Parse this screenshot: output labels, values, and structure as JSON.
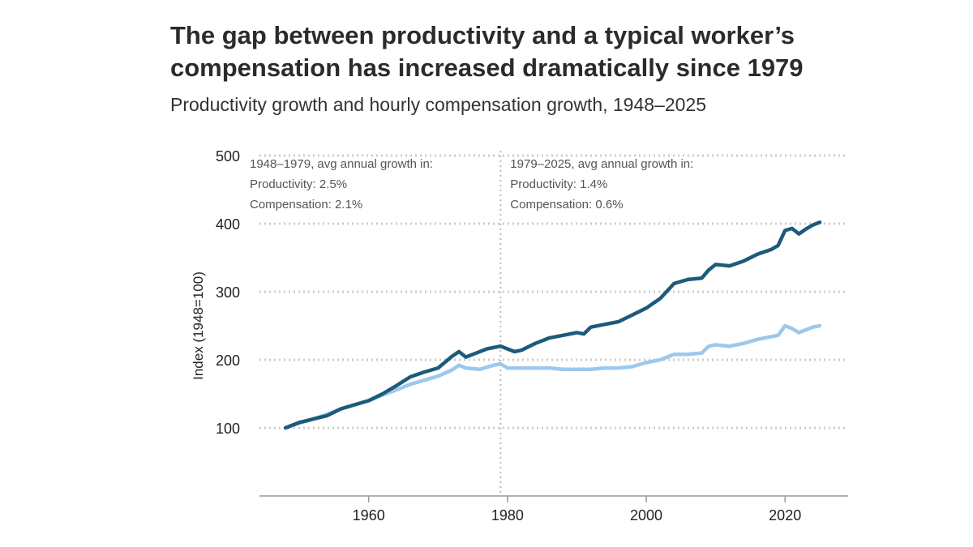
{
  "title": "The gap between productivity and a typical worker’s compensation has increased dramatically since 1979",
  "subtitle": "Productivity growth and hourly compensation growth, 1948–2025",
  "chart_data": {
    "type": "line",
    "title": "The gap between productivity and a typical worker’s compensation has increased dramatically since 1979",
    "subtitle": "Productivity growth and hourly compensation growth, 1948–2025",
    "xlabel": "",
    "ylabel": "Index (1948=100)",
    "xlim": [
      1948,
      2025
    ],
    "ylim": [
      0,
      500
    ],
    "x_ticks": [
      1960,
      1980,
      2000,
      2020
    ],
    "y_ticks": [
      100,
      200,
      300,
      400,
      500
    ],
    "grid": "horizontal dotted",
    "vline": 1979,
    "annotations": [
      {
        "lines": [
          "1948–1979, avg annual growth in:",
          "Productivity: 2.5%",
          "Compensation: 2.1%"
        ]
      },
      {
        "lines": [
          "1979–2025, avg annual growth in:",
          "Productivity: 1.4%",
          "Compensation: 0.6%"
        ]
      }
    ],
    "series": [
      {
        "name": "Productivity",
        "color": "#1d5a7c",
        "x": [
          1948,
          1950,
          1952,
          1954,
          1956,
          1958,
          1960,
          1962,
          1964,
          1966,
          1968,
          1970,
          1972,
          1973,
          1974,
          1975,
          1977,
          1979,
          1981,
          1982,
          1984,
          1986,
          1988,
          1990,
          1991,
          1992,
          1994,
          1996,
          1998,
          2000,
          2002,
          2004,
          2006,
          2008,
          2009,
          2010,
          2012,
          2014,
          2016,
          2018,
          2019,
          2020,
          2021,
          2022,
          2023,
          2024,
          2025
        ],
        "values": [
          100,
          108,
          113,
          118,
          128,
          134,
          140,
          150,
          162,
          175,
          182,
          188,
          205,
          212,
          204,
          208,
          216,
          220,
          212,
          214,
          224,
          232,
          236,
          240,
          238,
          248,
          252,
          256,
          266,
          276,
          290,
          312,
          318,
          320,
          332,
          340,
          338,
          345,
          355,
          362,
          368,
          390,
          393,
          385,
          392,
          398,
          402
        ]
      },
      {
        "name": "Compensation",
        "color": "#9dc8ec",
        "x": [
          1948,
          1950,
          1952,
          1954,
          1956,
          1958,
          1960,
          1962,
          1964,
          1966,
          1968,
          1970,
          1972,
          1973,
          1974,
          1976,
          1978,
          1979,
          1980,
          1982,
          1984,
          1986,
          1988,
          1990,
          1992,
          1994,
          1996,
          1998,
          2000,
          2002,
          2004,
          2006,
          2008,
          2009,
          2010,
          2012,
          2014,
          2016,
          2018,
          2019,
          2020,
          2021,
          2022,
          2023,
          2024,
          2025
        ],
        "values": [
          100,
          107,
          113,
          120,
          128,
          134,
          140,
          148,
          156,
          164,
          170,
          176,
          185,
          192,
          188,
          186,
          192,
          194,
          188,
          188,
          188,
          188,
          186,
          186,
          186,
          188,
          188,
          190,
          196,
          200,
          208,
          208,
          210,
          220,
          222,
          220,
          224,
          230,
          234,
          236,
          250,
          246,
          240,
          244,
          248,
          250
        ]
      }
    ]
  }
}
